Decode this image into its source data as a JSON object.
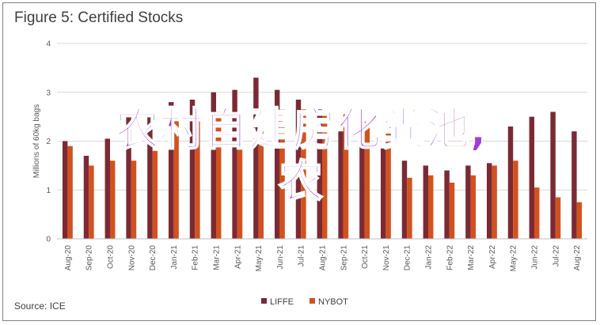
{
  "chart_data": {
    "type": "bar",
    "title": "Figure 5: Certified Stocks",
    "ylabel": "Millions of 60kg bags",
    "xlabel": "",
    "ylim": [
      0,
      4
    ],
    "yticks": [
      0,
      1,
      2,
      3,
      4
    ],
    "grid": true,
    "legend": "bottom",
    "source": "Source: ICE",
    "categories": [
      "Aug-20",
      "Sep-20",
      "Oct-20",
      "Nov-20",
      "Dec-20",
      "Jan-21",
      "Feb-21",
      "Mar-21",
      "Apr-21",
      "May-21",
      "Jun-21",
      "Jul-21",
      "Aug-21",
      "Sep-21",
      "Oct-21",
      "Nov-21",
      "Dec-21",
      "Jan-22",
      "Feb-22",
      "Mar-22",
      "Apr-22",
      "May-22",
      "Jun-22",
      "Jul-22",
      "Aug-22"
    ],
    "series": [
      {
        "name": "LIFFE",
        "color": "#7b2a35",
        "values": [
          2.0,
          1.7,
          2.05,
          2.5,
          2.6,
          2.8,
          2.85,
          3.0,
          3.05,
          3.3,
          3.05,
          2.85,
          2.65,
          2.2,
          1.9,
          1.85,
          1.6,
          1.5,
          1.4,
          1.5,
          1.55,
          2.3,
          2.5,
          2.6,
          2.2
        ]
      },
      {
        "name": "NYBOT",
        "color": "#d2521e",
        "values": [
          1.9,
          1.5,
          1.6,
          1.6,
          1.8,
          2.45,
          2.45,
          2.6,
          2.1,
          2.4,
          2.65,
          2.65,
          2.6,
          2.55,
          2.4,
          2.4,
          1.25,
          1.3,
          1.15,
          1.3,
          1.5,
          1.6,
          1.05,
          0.85,
          0.75
        ]
      }
    ]
  },
  "watermark": {
    "line1": "农村自建房化粪池,",
    "line2": "农"
  }
}
